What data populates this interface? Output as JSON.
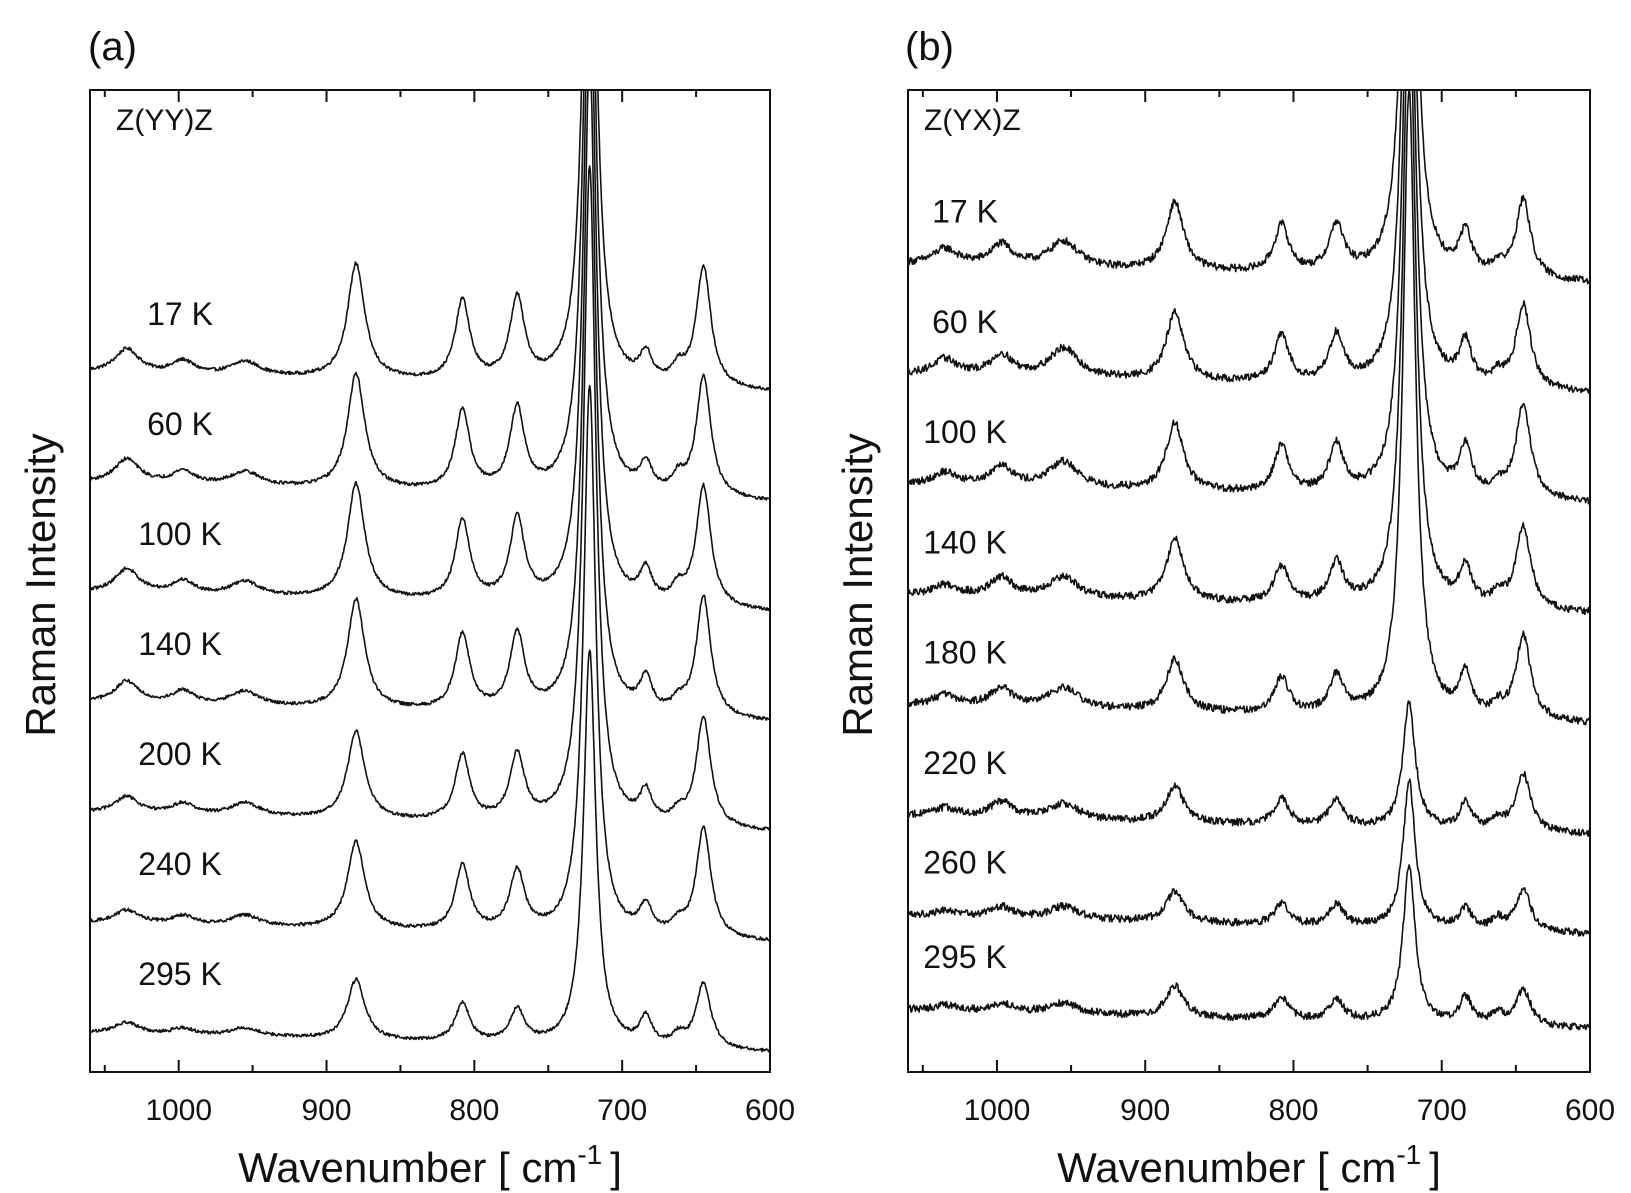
{
  "figure": {
    "panels": [
      {
        "letter": "(a)",
        "polarization": "Z(YY)Z",
        "xlabel_main": "Wavenumber [ cm",
        "xlabel_sup": "-1",
        "xlabel_end": "]",
        "ylabel": "Raman Intensity"
      },
      {
        "letter": "(b)",
        "polarization": "Z(YX)Z",
        "xlabel_main": "Wavenumber [ cm",
        "xlabel_sup": "-1",
        "xlabel_end": "]",
        "ylabel": "Raman Intensity"
      }
    ]
  },
  "chart_data": [
    {
      "type": "line",
      "xlim": [
        1060,
        600
      ],
      "x_ticks": [
        "1000",
        "900",
        "800",
        "700",
        "600"
      ],
      "x_tick_values": [
        1000,
        900,
        800,
        700,
        600
      ],
      "y_ticks": false,
      "peak_positions": [
        1035,
        997,
        955,
        880,
        808,
        771,
        722,
        684,
        662,
        645
      ],
      "series": [
        {
          "name": "17 K",
          "offset": 6.2,
          "peak_heights": [
            0.22,
            0.12,
            0.13,
            1.05,
            0.73,
            0.75,
            6.0,
            0.25,
            0.14,
            1.1
          ]
        },
        {
          "name": "60 K",
          "offset": 5.2,
          "peak_heights": [
            0.22,
            0.12,
            0.13,
            1.05,
            0.73,
            0.75,
            6.0,
            0.25,
            0.14,
            1.1
          ]
        },
        {
          "name": "100 K",
          "offset": 4.2,
          "peak_heights": [
            0.22,
            0.12,
            0.13,
            1.05,
            0.73,
            0.75,
            6.0,
            0.28,
            0.14,
            1.1
          ]
        },
        {
          "name": "140 K",
          "offset": 3.2,
          "peak_heights": [
            0.2,
            0.12,
            0.13,
            1.0,
            0.7,
            0.7,
            6.0,
            0.3,
            0.1,
            1.1
          ]
        },
        {
          "name": "200 K",
          "offset": 2.2,
          "peak_heights": [
            0.15,
            0.1,
            0.12,
            0.8,
            0.6,
            0.6,
            6.0,
            0.27,
            0.1,
            1.0
          ]
        },
        {
          "name": "240 K",
          "offset": 1.2,
          "peak_heights": [
            0.12,
            0.08,
            0.1,
            0.8,
            0.6,
            0.55,
            5.0,
            0.25,
            0.1,
            1.0
          ]
        },
        {
          "name": "295 K",
          "offset": 0.2,
          "peak_heights": [
            0.1,
            0.06,
            0.08,
            0.55,
            0.35,
            0.3,
            3.6,
            0.25,
            0.1,
            0.6
          ]
        }
      ]
    },
    {
      "type": "line",
      "xlim": [
        1060,
        600
      ],
      "x_ticks": [
        "1000",
        "900",
        "800",
        "700",
        "600"
      ],
      "x_tick_values": [
        1000,
        900,
        800,
        700,
        600
      ],
      "y_ticks": false,
      "peak_positions": [
        1035,
        997,
        955,
        880,
        808,
        771,
        722,
        684,
        662,
        645
      ],
      "series": [
        {
          "name": "17 K",
          "offset": 7.1,
          "peak_heights": [
            0.15,
            0.2,
            0.25,
            0.65,
            0.45,
            0.45,
            6.0,
            0.4,
            0.1,
            0.75
          ]
        },
        {
          "name": "60 K",
          "offset": 6.05,
          "peak_heights": [
            0.15,
            0.2,
            0.28,
            0.65,
            0.45,
            0.45,
            6.0,
            0.4,
            0.1,
            0.8
          ]
        },
        {
          "name": "100 K",
          "offset": 5.0,
          "peak_heights": [
            0.12,
            0.2,
            0.25,
            0.65,
            0.45,
            0.45,
            6.0,
            0.45,
            0.1,
            0.9
          ]
        },
        {
          "name": "140 K",
          "offset": 3.95,
          "peak_heights": [
            0.1,
            0.18,
            0.2,
            0.6,
            0.35,
            0.38,
            6.0,
            0.35,
            0.1,
            0.8
          ]
        },
        {
          "name": "180 K",
          "offset": 2.9,
          "peak_heights": [
            0.1,
            0.18,
            0.2,
            0.5,
            0.35,
            0.35,
            6.0,
            0.4,
            0.1,
            0.8
          ]
        },
        {
          "name": "220 K",
          "offset": 1.85,
          "peak_heights": [
            0.08,
            0.15,
            0.15,
            0.35,
            0.25,
            0.25,
            1.2,
            0.25,
            0.1,
            0.55
          ]
        },
        {
          "name": "260 K",
          "offset": 0.9,
          "peak_heights": [
            0.05,
            0.1,
            0.12,
            0.3,
            0.2,
            0.2,
            1.4,
            0.2,
            0.1,
            0.4
          ]
        },
        {
          "name": "295 K",
          "offset": 0.0,
          "peak_heights": [
            0.05,
            0.08,
            0.1,
            0.3,
            0.2,
            0.2,
            1.5,
            0.25,
            0.1,
            0.35
          ]
        }
      ]
    }
  ]
}
